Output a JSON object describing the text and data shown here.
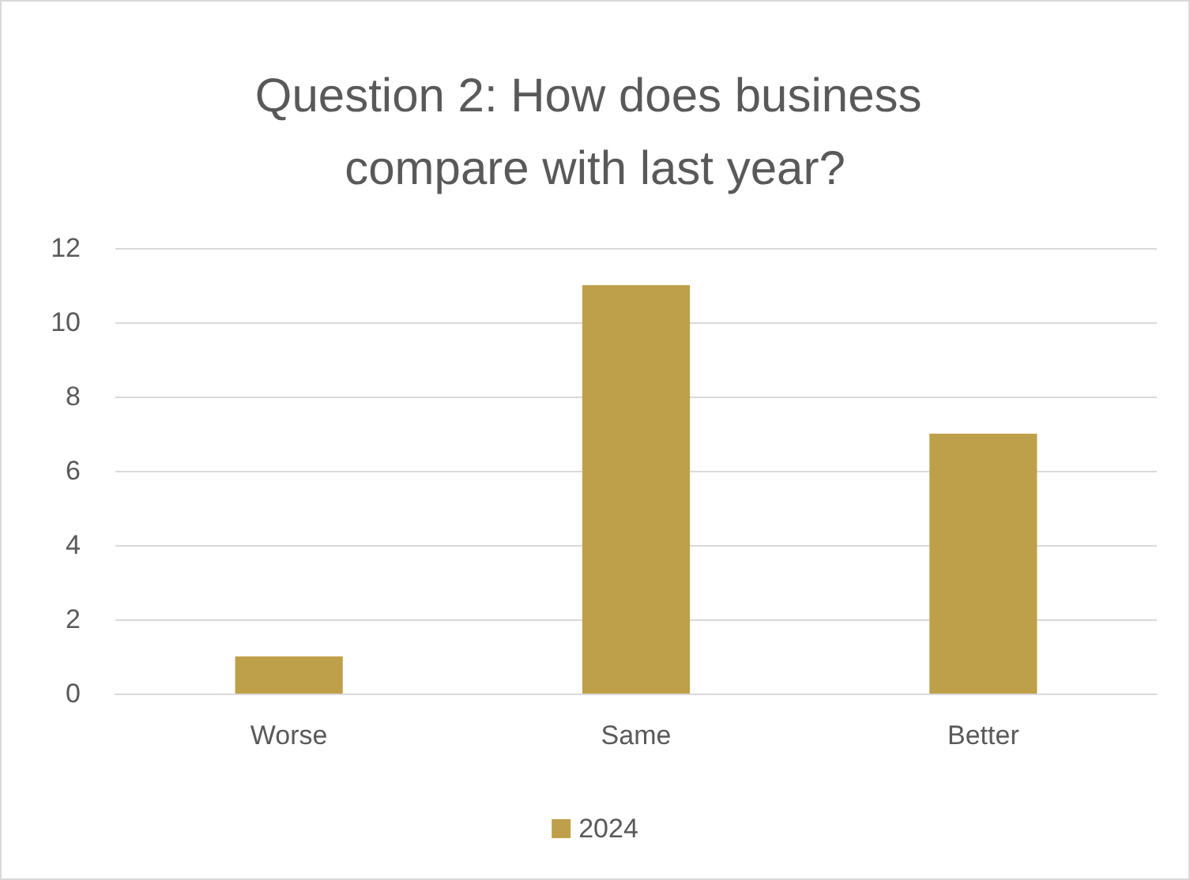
{
  "chart_data": {
    "type": "bar",
    "title": "Question 2: How does business compare with last year?",
    "categories": [
      "Worse",
      "Same",
      "Better"
    ],
    "series": [
      {
        "name": "2024",
        "color": "#bfa04a",
        "values": [
          1,
          11,
          7
        ]
      }
    ],
    "ylim": [
      0,
      12
    ],
    "yticks": [
      0,
      2,
      4,
      6,
      8,
      10,
      12
    ],
    "grid": "y",
    "legend": "bottom"
  }
}
